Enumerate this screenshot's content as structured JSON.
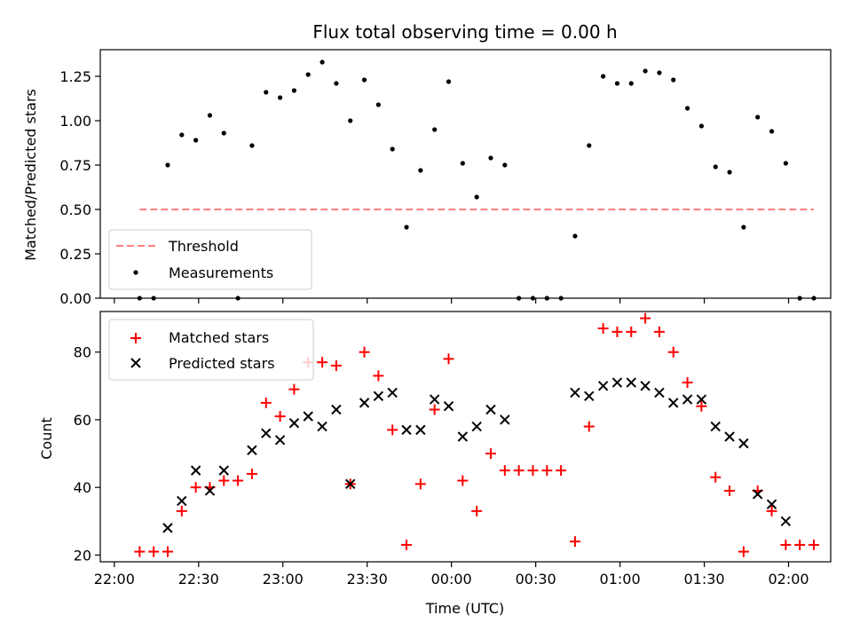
{
  "chart_data": [
    {
      "type": "scatter",
      "title": "Flux total observing time = 0.00 h",
      "ylabel": "Matched/Predicted stars",
      "xlabel": "",
      "ylim": [
        0,
        1.4
      ],
      "xlim_minutes_from_2200": [
        -5,
        255
      ],
      "yticks": [
        0.0,
        0.25,
        0.5,
        0.75,
        1.0,
        1.25
      ],
      "ytick_labels": [
        "0.00",
        "0.25",
        "0.50",
        "0.75",
        "1.00",
        "1.25"
      ],
      "legend_position": "lower-left",
      "threshold": {
        "name": "Threshold",
        "y": 0.5,
        "x_range": [
          "22:09",
          "02:09"
        ],
        "color": "#ff8080"
      },
      "measurements": {
        "name": "Measurements",
        "color": "#000000",
        "points": [
          [
            "22:09",
            0.0
          ],
          [
            "22:14",
            0.0
          ],
          [
            "22:19",
            0.75
          ],
          [
            "22:24",
            0.92
          ],
          [
            "22:29",
            0.89
          ],
          [
            "22:34",
            1.03
          ],
          [
            "22:39",
            0.93
          ],
          [
            "22:44",
            0.0
          ],
          [
            "22:49",
            0.86
          ],
          [
            "22:54",
            1.16
          ],
          [
            "22:59",
            1.13
          ],
          [
            "23:04",
            1.17
          ],
          [
            "23:09",
            1.26
          ],
          [
            "23:14",
            1.33
          ],
          [
            "23:19",
            1.21
          ],
          [
            "23:24",
            1.0
          ],
          [
            "23:29",
            1.23
          ],
          [
            "23:34",
            1.09
          ],
          [
            "23:39",
            0.84
          ],
          [
            "23:44",
            0.4
          ],
          [
            "23:49",
            0.72
          ],
          [
            "23:54",
            0.95
          ],
          [
            "23:59",
            1.22
          ],
          [
            "00:04",
            0.76
          ],
          [
            "00:09",
            0.57
          ],
          [
            "00:14",
            0.79
          ],
          [
            "00:19",
            0.75
          ],
          [
            "00:24",
            0.0
          ],
          [
            "00:29",
            0.0
          ],
          [
            "00:34",
            0.0
          ],
          [
            "00:39",
            0.0
          ],
          [
            "00:44",
            0.35
          ],
          [
            "00:49",
            0.86
          ],
          [
            "00:54",
            1.25
          ],
          [
            "00:59",
            1.21
          ],
          [
            "01:04",
            1.21
          ],
          [
            "01:09",
            1.28
          ],
          [
            "01:14",
            1.27
          ],
          [
            "01:19",
            1.23
          ],
          [
            "01:24",
            1.07
          ],
          [
            "01:29",
            0.97
          ],
          [
            "01:34",
            0.74
          ],
          [
            "01:39",
            0.71
          ],
          [
            "01:44",
            0.4
          ],
          [
            "01:49",
            1.02
          ],
          [
            "01:54",
            0.94
          ],
          [
            "01:59",
            0.76
          ],
          [
            "02:04",
            0.0
          ],
          [
            "02:09",
            0.0
          ]
        ]
      }
    },
    {
      "type": "scatter",
      "title": "",
      "ylabel": "Count",
      "xlabel": "Time (UTC)",
      "ylim": [
        18,
        92
      ],
      "xlim_minutes_from_2200": [
        -5,
        255
      ],
      "yticks": [
        20,
        40,
        60,
        80
      ],
      "ytick_labels": [
        "20",
        "40",
        "60",
        "80"
      ],
      "xtick_labels": [
        "22:00",
        "22:30",
        "23:00",
        "23:30",
        "00:00",
        "00:30",
        "01:00",
        "01:30",
        "02:00"
      ],
      "legend_position": "top-left",
      "series": [
        {
          "name": "Matched stars",
          "marker": "plus",
          "color": "#ff0000",
          "points": [
            [
              "22:09",
              21
            ],
            [
              "22:14",
              21
            ],
            [
              "22:19",
              21
            ],
            [
              "22:24",
              33
            ],
            [
              "22:29",
              40
            ],
            [
              "22:34",
              40
            ],
            [
              "22:39",
              42
            ],
            [
              "22:44",
              42
            ],
            [
              "22:49",
              44
            ],
            [
              "22:54",
              65
            ],
            [
              "22:59",
              61
            ],
            [
              "23:04",
              69
            ],
            [
              "23:09",
              77
            ],
            [
              "23:14",
              77
            ],
            [
              "23:19",
              76
            ],
            [
              "23:24",
              41
            ],
            [
              "23:29",
              80
            ],
            [
              "23:34",
              73
            ],
            [
              "23:39",
              57
            ],
            [
              "23:44",
              23
            ],
            [
              "23:49",
              41
            ],
            [
              "23:54",
              63
            ],
            [
              "23:59",
              78
            ],
            [
              "00:04",
              42
            ],
            [
              "00:09",
              33
            ],
            [
              "00:14",
              50
            ],
            [
              "00:19",
              45
            ],
            [
              "00:24",
              45
            ],
            [
              "00:29",
              45
            ],
            [
              "00:34",
              45
            ],
            [
              "00:39",
              45
            ],
            [
              "00:44",
              24
            ],
            [
              "00:49",
              58
            ],
            [
              "00:54",
              87
            ],
            [
              "00:59",
              86
            ],
            [
              "01:04",
              86
            ],
            [
              "01:09",
              90
            ],
            [
              "01:14",
              86
            ],
            [
              "01:19",
              80
            ],
            [
              "01:24",
              71
            ],
            [
              "01:29",
              64
            ],
            [
              "01:34",
              43
            ],
            [
              "01:39",
              39
            ],
            [
              "01:44",
              21
            ],
            [
              "01:49",
              39
            ],
            [
              "01:54",
              33
            ],
            [
              "01:59",
              23
            ],
            [
              "02:04",
              23
            ],
            [
              "02:09",
              23
            ]
          ]
        },
        {
          "name": "Predicted stars",
          "marker": "x",
          "color": "#000000",
          "points": [
            [
              "22:19",
              28
            ],
            [
              "22:24",
              36
            ],
            [
              "22:29",
              45
            ],
            [
              "22:34",
              39
            ],
            [
              "22:39",
              45
            ],
            [
              "22:49",
              51
            ],
            [
              "22:54",
              56
            ],
            [
              "22:59",
              54
            ],
            [
              "23:04",
              59
            ],
            [
              "23:09",
              61
            ],
            [
              "23:14",
              58
            ],
            [
              "23:19",
              63
            ],
            [
              "23:24",
              41
            ],
            [
              "23:29",
              65
            ],
            [
              "23:34",
              67
            ],
            [
              "23:39",
              68
            ],
            [
              "23:44",
              57
            ],
            [
              "23:49",
              57
            ],
            [
              "23:54",
              66
            ],
            [
              "23:59",
              64
            ],
            [
              "00:04",
              55
            ],
            [
              "00:09",
              58
            ],
            [
              "00:14",
              63
            ],
            [
              "00:19",
              60
            ],
            [
              "00:44",
              68
            ],
            [
              "00:49",
              67
            ],
            [
              "00:54",
              70
            ],
            [
              "00:59",
              71
            ],
            [
              "01:04",
              71
            ],
            [
              "01:09",
              70
            ],
            [
              "01:14",
              68
            ],
            [
              "01:19",
              65
            ],
            [
              "01:24",
              66
            ],
            [
              "01:29",
              66
            ],
            [
              "01:34",
              58
            ],
            [
              "01:39",
              55
            ],
            [
              "01:44",
              53
            ],
            [
              "01:49",
              38
            ],
            [
              "01:54",
              35
            ],
            [
              "01:59",
              30
            ]
          ]
        }
      ]
    }
  ]
}
